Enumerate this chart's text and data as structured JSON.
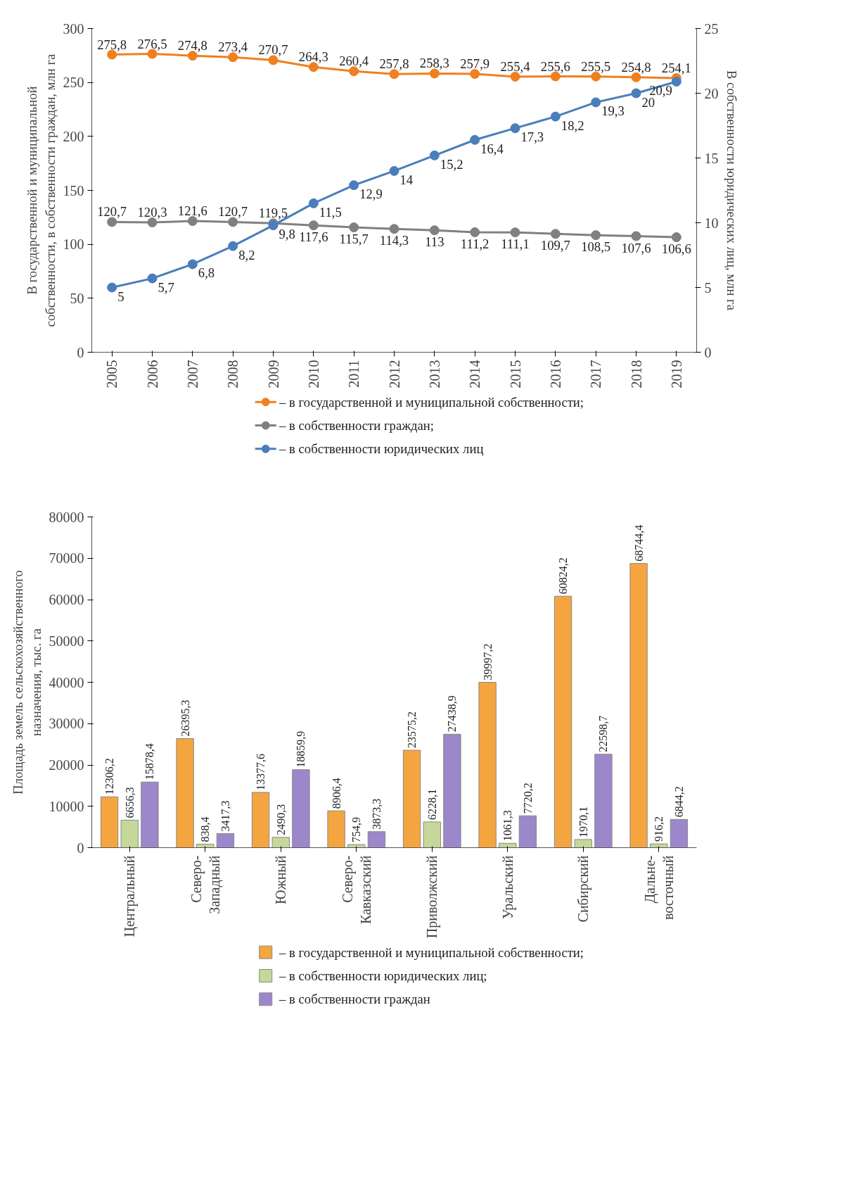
{
  "chart_data": [
    {
      "type": "line",
      "categories": [
        "2005",
        "2006",
        "2007",
        "2008",
        "2009",
        "2010",
        "2011",
        "2012",
        "2013",
        "2014",
        "2015",
        "2016",
        "2017",
        "2018",
        "2019"
      ],
      "ylabel": "В государственной и муниципальной\nсобственности, в собственности граждан, млн га",
      "y2label": "В собственности юридических лиц, млн га",
      "ylim": [
        0,
        300
      ],
      "yticks": [
        0,
        50,
        100,
        150,
        200,
        250,
        300
      ],
      "y2lim": [
        0,
        25
      ],
      "y2ticks": [
        0,
        5,
        10,
        15,
        20,
        25
      ],
      "marker": "circle",
      "legend": "bottom",
      "series": [
        {
          "name": "– в государственной и муниципальной собственности;",
          "color": "#f07f1e",
          "values": [
            275.8,
            276.5,
            274.8,
            273.4,
            270.7,
            264.3,
            260.4,
            257.8,
            258.3,
            257.9,
            255.4,
            255.6,
            255.5,
            254.8,
            254.1
          ],
          "value_labels": [
            "275,8",
            "276,5",
            "274,8",
            "273,4",
            "270,7",
            "264,3",
            "260,4",
            "257,8",
            "258,3",
            "257,9",
            "255,4",
            "255,6",
            "255,5",
            "254,8",
            "254,1"
          ]
        },
        {
          "name": "– в собственности граждан;",
          "color": "#808080",
          "values": [
            120.7,
            120.3,
            121.6,
            120.7,
            119.5,
            117.6,
            115.7,
            114.3,
            113,
            111.2,
            111.1,
            109.7,
            108.5,
            107.6,
            106.6
          ],
          "value_labels": [
            "120,7",
            "120,3",
            "121,6",
            "120,7",
            "119,5",
            "117,6",
            "115,7",
            "114,3",
            "113",
            "111,2",
            "111,1",
            "109,7",
            "108,5",
            "107,6",
            "106,6"
          ]
        },
        {
          "name": "– в собственности юридических лиц",
          "color": "#4a7ebb",
          "axis": "y2",
          "values": [
            5,
            5.7,
            6.8,
            8.2,
            9.8,
            11.5,
            12.9,
            14,
            15.2,
            16.4,
            17.3,
            18.2,
            19.3,
            20,
            20.9
          ],
          "value_labels": [
            "5",
            "5,7",
            "6,8",
            "8,2",
            "9,8",
            "11,5",
            "12,9",
            "14",
            "15,2",
            "16,4",
            "17,3",
            "18,2",
            "19,3",
            "20",
            "20,9"
          ]
        }
      ]
    },
    {
      "type": "bar",
      "categories": [
        "Центральный",
        "Северо-\nЗападный",
        "Южный",
        "Северо-\nКавказский",
        "Приволжский",
        "Уральский",
        "Сибирский",
        "Дальне-\nвосточный"
      ],
      "ylabel": "Площадь земель сельскохозяйственного\nназначения, тыс. га",
      "ylim": [
        0,
        80000
      ],
      "yticks": [
        0,
        10000,
        20000,
        30000,
        40000,
        50000,
        60000,
        70000,
        80000
      ],
      "legend": "bottom",
      "series": [
        {
          "name": "– в государственной и муниципальной собственности;",
          "color": "#f5a540",
          "values": [
            12306.2,
            26395.3,
            13377.6,
            8906.4,
            23575.2,
            39997.2,
            60824.2,
            68744.4
          ],
          "value_labels": [
            "12306,2",
            "26395,3",
            "13377,6",
            "8906,4",
            "23575,2",
            "39997,2",
            "60824,2",
            "68744,4"
          ]
        },
        {
          "name": "– в собственности юридических лиц;",
          "color": "#c5d89a",
          "values": [
            6656.3,
            838.4,
            2490.3,
            754.9,
            6228.1,
            1061.3,
            1970.1,
            916.2
          ],
          "value_labels": [
            "6656,3",
            "838,4",
            "2490,3",
            "754,9",
            "6228,1",
            "1061,3",
            "1970,1",
            "916,2"
          ]
        },
        {
          "name": "– в собственности граждан",
          "color": "#9b87c9",
          "values": [
            15878.4,
            3417.3,
            18859.9,
            3873.3,
            27438.9,
            7720.2,
            22598.7,
            6844.2
          ],
          "value_labels": [
            "15878,4",
            "3417,3",
            "18859,9",
            "3873,3",
            "27438,9",
            "7720,2",
            "22598,7",
            "6844,2"
          ]
        }
      ]
    }
  ]
}
